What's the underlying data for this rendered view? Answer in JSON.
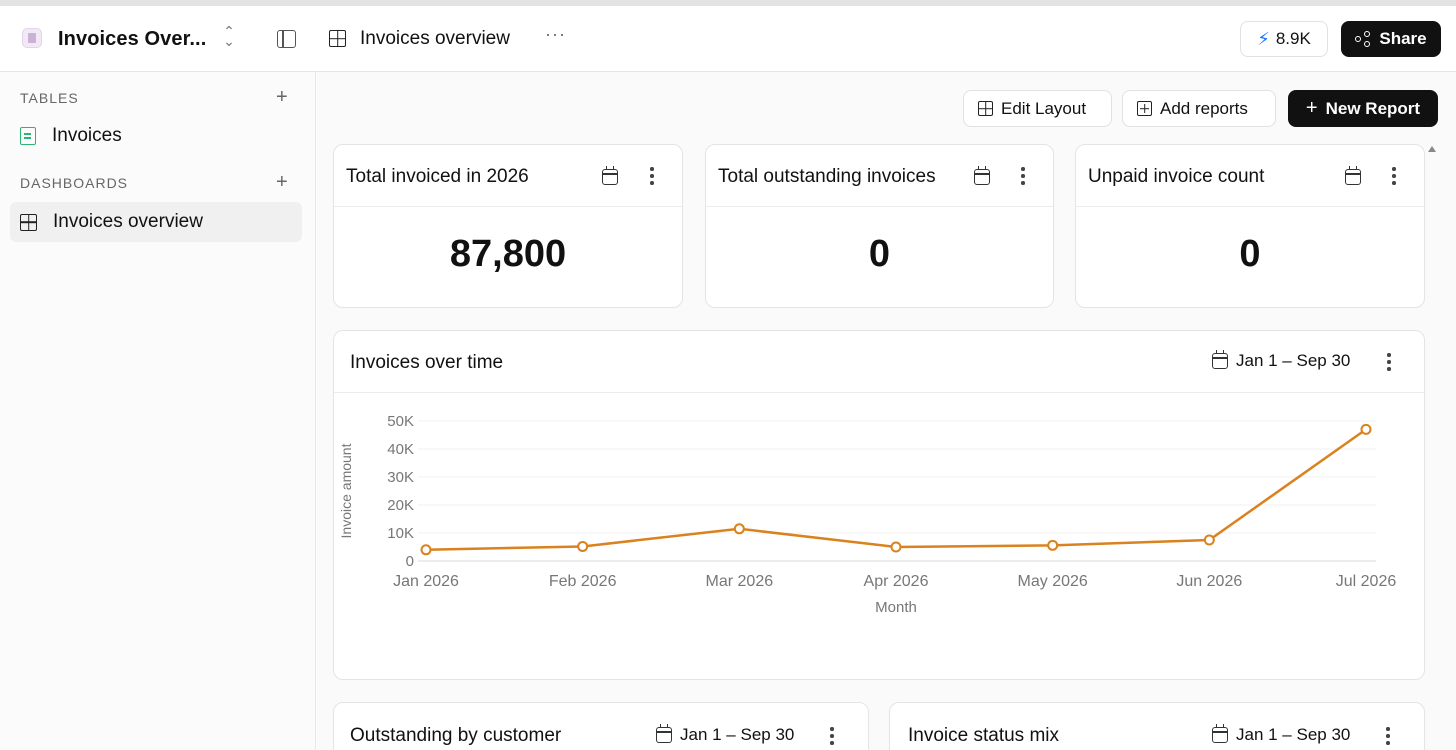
{
  "topbar": {
    "app_title": "Invoices Over...",
    "breadcrumb_title": "Invoices overview",
    "credits": "8.9K",
    "share_label": "Share"
  },
  "sidebar": {
    "tables_heading": "TABLES",
    "tables": [
      {
        "label": "Invoices",
        "icon": "document-icon"
      }
    ],
    "dashboards_heading": "DASHBOARDS",
    "dashboards": [
      {
        "label": "Invoices overview",
        "icon": "grid-icon",
        "active": true
      }
    ]
  },
  "toolbar": {
    "edit_layout": "Edit Layout",
    "add_reports": "Add reports",
    "new_report": "New Report"
  },
  "kpis": [
    {
      "title": "Total invoiced in 2026",
      "value": "87,800"
    },
    {
      "title": "Total outstanding invoices",
      "value": "0"
    },
    {
      "title": "Unpaid invoice count",
      "value": "0"
    }
  ],
  "line_chart": {
    "title": "Invoices over time",
    "date_range": "Jan 1 – Sep 30"
  },
  "bottom_cards": [
    {
      "title": "Outstanding by customer",
      "date_range": "Jan 1 – Sep 30"
    },
    {
      "title": "Invoice status mix",
      "date_range": "Jan 1 – Sep 30"
    }
  ],
  "chart_data": {
    "type": "line",
    "categories": [
      "Jan 2026",
      "Feb 2026",
      "Mar 2026",
      "Apr 2026",
      "May 2026",
      "Jun 2026",
      "Jul 2026"
    ],
    "series": [
      {
        "values": [
          4000,
          5200,
          11500,
          5000,
          5600,
          7500,
          47000
        ],
        "color": "#d9821e"
      }
    ],
    "xlabel": "Month",
    "ylabel": "Invoice amount",
    "ylim": [
      0,
      50000
    ],
    "yticks": [
      0,
      10000,
      20000,
      30000,
      40000,
      50000
    ],
    "ytick_labels": [
      "0",
      "10K",
      "20K",
      "30K",
      "40K",
      "50K"
    ],
    "grid": true
  }
}
